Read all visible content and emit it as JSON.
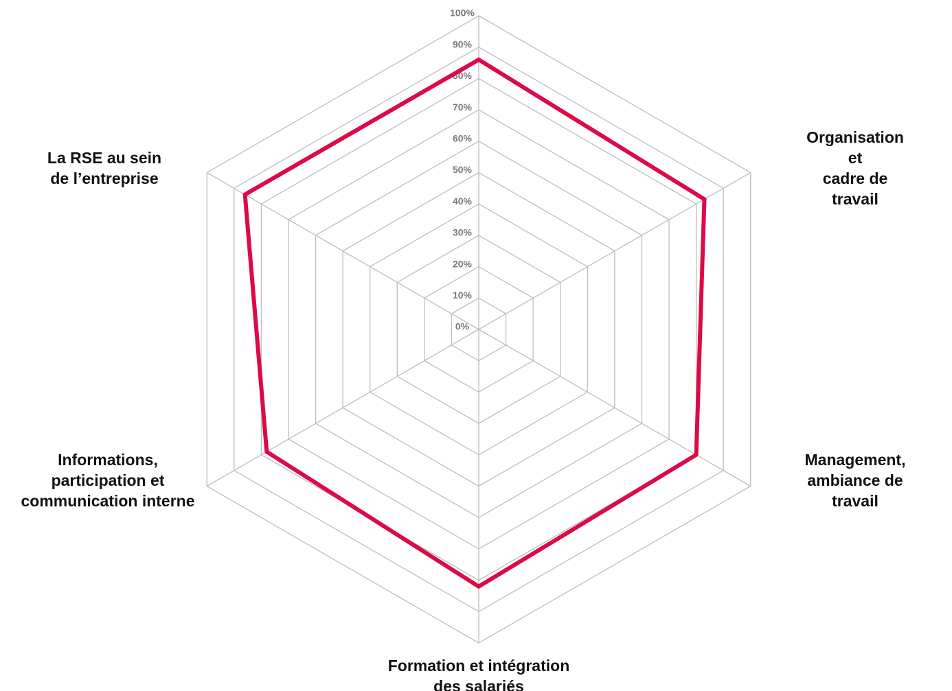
{
  "chart_data": {
    "type": "radar",
    "categories": [
      null,
      "Organisation et\ncadre de travail",
      "Management,\nambiance de travail",
      "Formation et intégration\ndes salariés",
      "Informations,\nparticipation et\ncommunication interne",
      "La RSE au sein\nde l’entreprise"
    ],
    "series": [
      {
        "color": "#dc0a47",
        "values": [
          86,
          83,
          80,
          82,
          78,
          86
        ]
      }
    ],
    "ylim": [
      0,
      100
    ],
    "yticks": [
      {
        "value": 0,
        "label": "0%"
      },
      {
        "value": 10,
        "label": "10%"
      },
      {
        "value": 20,
        "label": "20%"
      },
      {
        "value": 30,
        "label": "30%"
      },
      {
        "value": 40,
        "label": "40%"
      },
      {
        "value": 50,
        "label": "50%"
      },
      {
        "value": 60,
        "label": "60%"
      },
      {
        "value": 70,
        "label": "70%"
      },
      {
        "value": 80,
        "label": "80%"
      },
      {
        "value": 90,
        "label": "90%"
      },
      {
        "value": 100,
        "label": "100%"
      }
    ],
    "grid": true
  }
}
